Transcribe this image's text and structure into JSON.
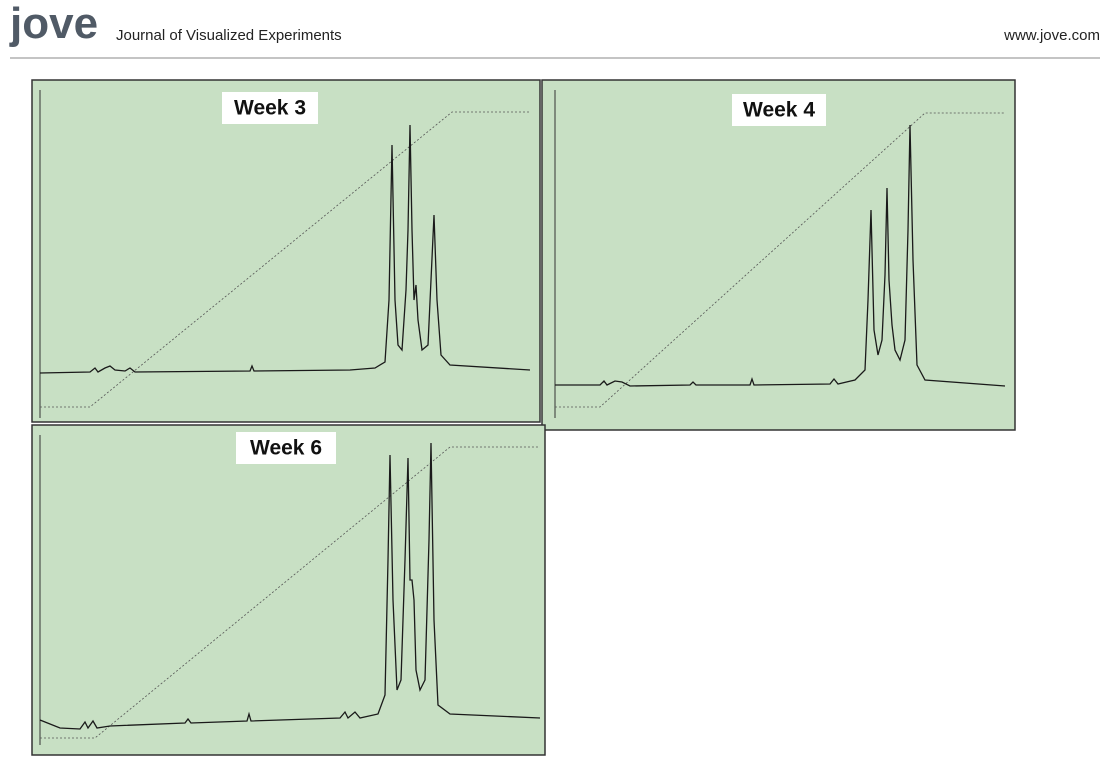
{
  "header": {
    "logo": "jove",
    "journal": "Journal of Visualized Experiments",
    "url": "www.jove.com"
  },
  "panels": [
    {
      "title": "Week 3"
    },
    {
      "title": "Week 4"
    },
    {
      "title": "Week 6"
    }
  ]
}
